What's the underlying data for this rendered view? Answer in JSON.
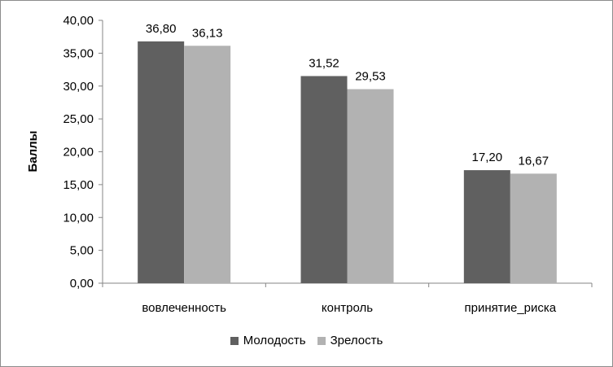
{
  "chart_data": {
    "type": "bar",
    "categories": [
      "вовлеченность",
      "контроль",
      "принятие_риска"
    ],
    "series": [
      {
        "name": "Молодость",
        "values": [
          36.8,
          31.52,
          17.2
        ],
        "labels": [
          "36,80",
          "31,52",
          "17,20"
        ],
        "color": "#606060"
      },
      {
        "name": "Зрелость",
        "values": [
          36.13,
          29.53,
          16.67
        ],
        "labels": [
          "36,13",
          "29,53",
          "16,67"
        ],
        "color": "#b2b2b2"
      }
    ],
    "ylabel": "Баллы",
    "xlabel": "",
    "ylim": [
      0,
      40
    ],
    "yticks": [
      0,
      5,
      10,
      15,
      20,
      25,
      30,
      35,
      40
    ],
    "ytick_labels": [
      "0,00",
      "5,00",
      "10,00",
      "15,00",
      "20,00",
      "25,00",
      "30,00",
      "35,00",
      "40,00"
    ],
    "grid": false,
    "legend_position": "bottom"
  }
}
